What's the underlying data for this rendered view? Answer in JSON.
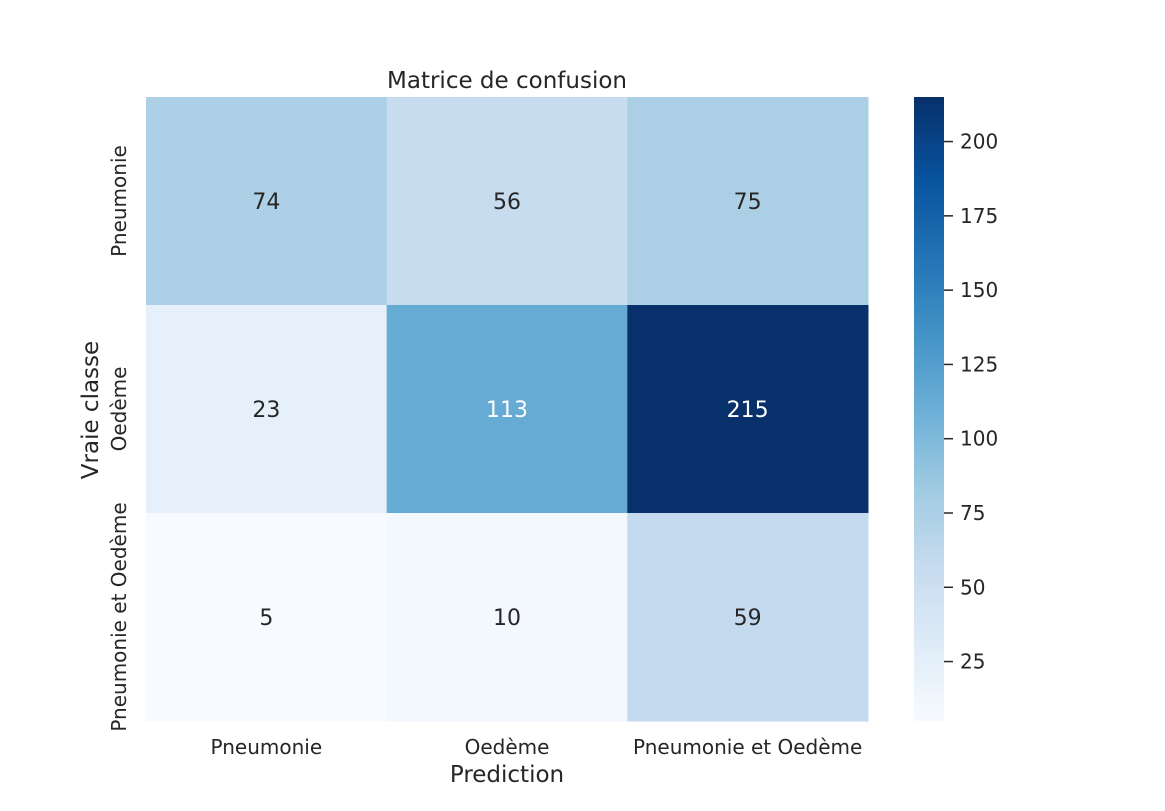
{
  "chart_data": {
    "type": "heatmap",
    "title": "Matrice de confusion",
    "xlabel": "Prediction",
    "ylabel": "Vraie classe",
    "x_categories": [
      "Pneumonie",
      "Oedème",
      "Pneumonie et Oedème"
    ],
    "y_categories": [
      "Pneumonie",
      "Oedème",
      "Pneumonie et Oedème"
    ],
    "values": [
      [
        74,
        56,
        75
      ],
      [
        23,
        113,
        215
      ],
      [
        5,
        10,
        59
      ]
    ],
    "colormap": "Blues",
    "vmin": 5,
    "vmax": 215,
    "colorbar_ticks": [
      25,
      50,
      75,
      100,
      125,
      150,
      175,
      200
    ],
    "grid": false
  }
}
